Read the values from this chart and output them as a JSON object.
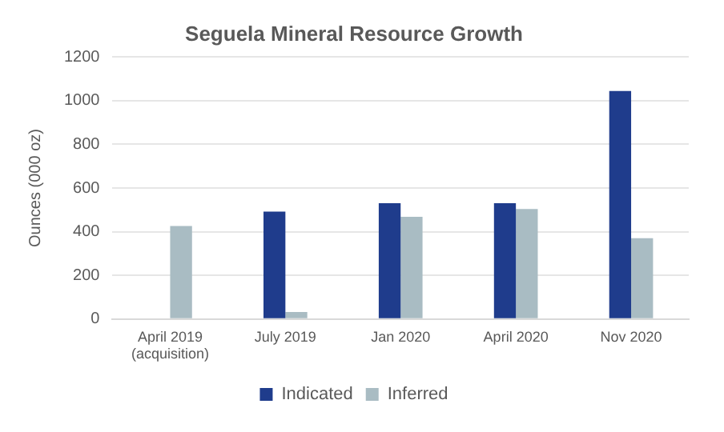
{
  "chart_data": {
    "type": "bar",
    "title": "Seguela Mineral Resource Growth",
    "ylabel": "Ounces (000 oz)",
    "categories": [
      "April 2019\n(acquisition)",
      "July 2019",
      "Jan 2020",
      "April 2020",
      "Nov 2020"
    ],
    "series": [
      {
        "name": "Indicated",
        "color": "#1f3c8c",
        "values": [
          null,
          492,
          530,
          530,
          1044
        ]
      },
      {
        "name": "Inferred",
        "color": "#a9bcc3",
        "values": [
          426,
          32,
          468,
          504,
          370
        ]
      }
    ],
    "ylim": [
      0,
      1200
    ],
    "yticks": [
      0,
      200,
      400,
      600,
      800,
      1000,
      1200
    ],
    "grid": "y",
    "legend": "bottom"
  }
}
